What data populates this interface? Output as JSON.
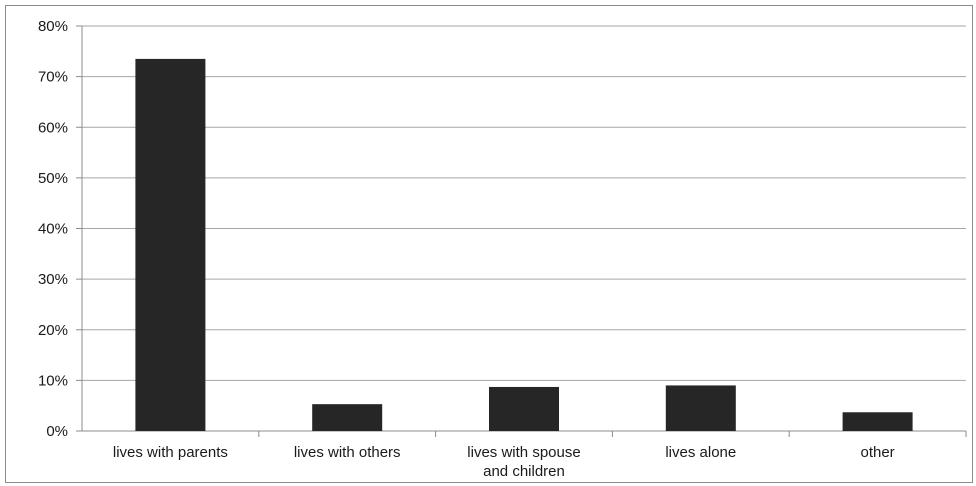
{
  "chart_data": {
    "type": "bar",
    "categories": [
      [
        "lives with parents"
      ],
      [
        "lives with others"
      ],
      [
        "lives with spouse",
        "and children"
      ],
      [
        "lives alone"
      ],
      [
        "other"
      ]
    ],
    "values": [
      73.5,
      5.3,
      8.7,
      9.0,
      3.7
    ],
    "ylim": [
      0,
      80
    ],
    "y_ticks": [
      "0%",
      "10%",
      "20%",
      "30%",
      "40%",
      "50%",
      "60%",
      "70%",
      "80%"
    ],
    "grid": true,
    "legend": "none",
    "bar_color": "#262626",
    "grid_color": "#a6a6a6"
  }
}
